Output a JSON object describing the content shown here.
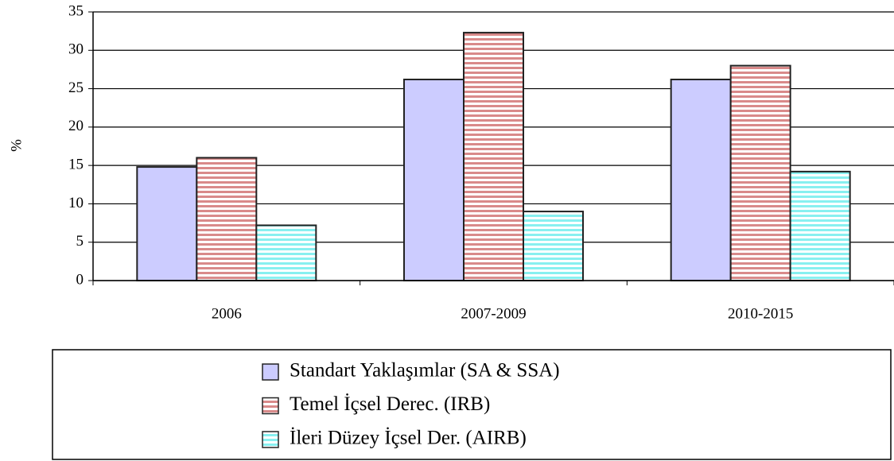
{
  "chart_data": {
    "type": "bar",
    "y_label": "%",
    "categories": [
      "2006",
      "2007-2009",
      "2010-2015"
    ],
    "series": [
      {
        "name": "Standart Yaklaşımlar (SA & SSA)",
        "color": "#ccccff",
        "hatch": false,
        "values": [
          14.8,
          26.2,
          26.2
        ]
      },
      {
        "name": "Temel İçsel Derec. (IRB)",
        "color": "#d98a8a",
        "hatch": true,
        "values": [
          16,
          32.3,
          28
        ]
      },
      {
        "name": "İleri Düzey İçsel Der. (AIRB)",
        "color": "#88f0f0",
        "hatch": true,
        "values": [
          7.2,
          9,
          14.2
        ]
      }
    ],
    "ylim": [
      0,
      35
    ],
    "yticks": [
      0,
      5,
      10,
      15,
      20,
      25,
      30,
      35
    ],
    "grid": true
  }
}
